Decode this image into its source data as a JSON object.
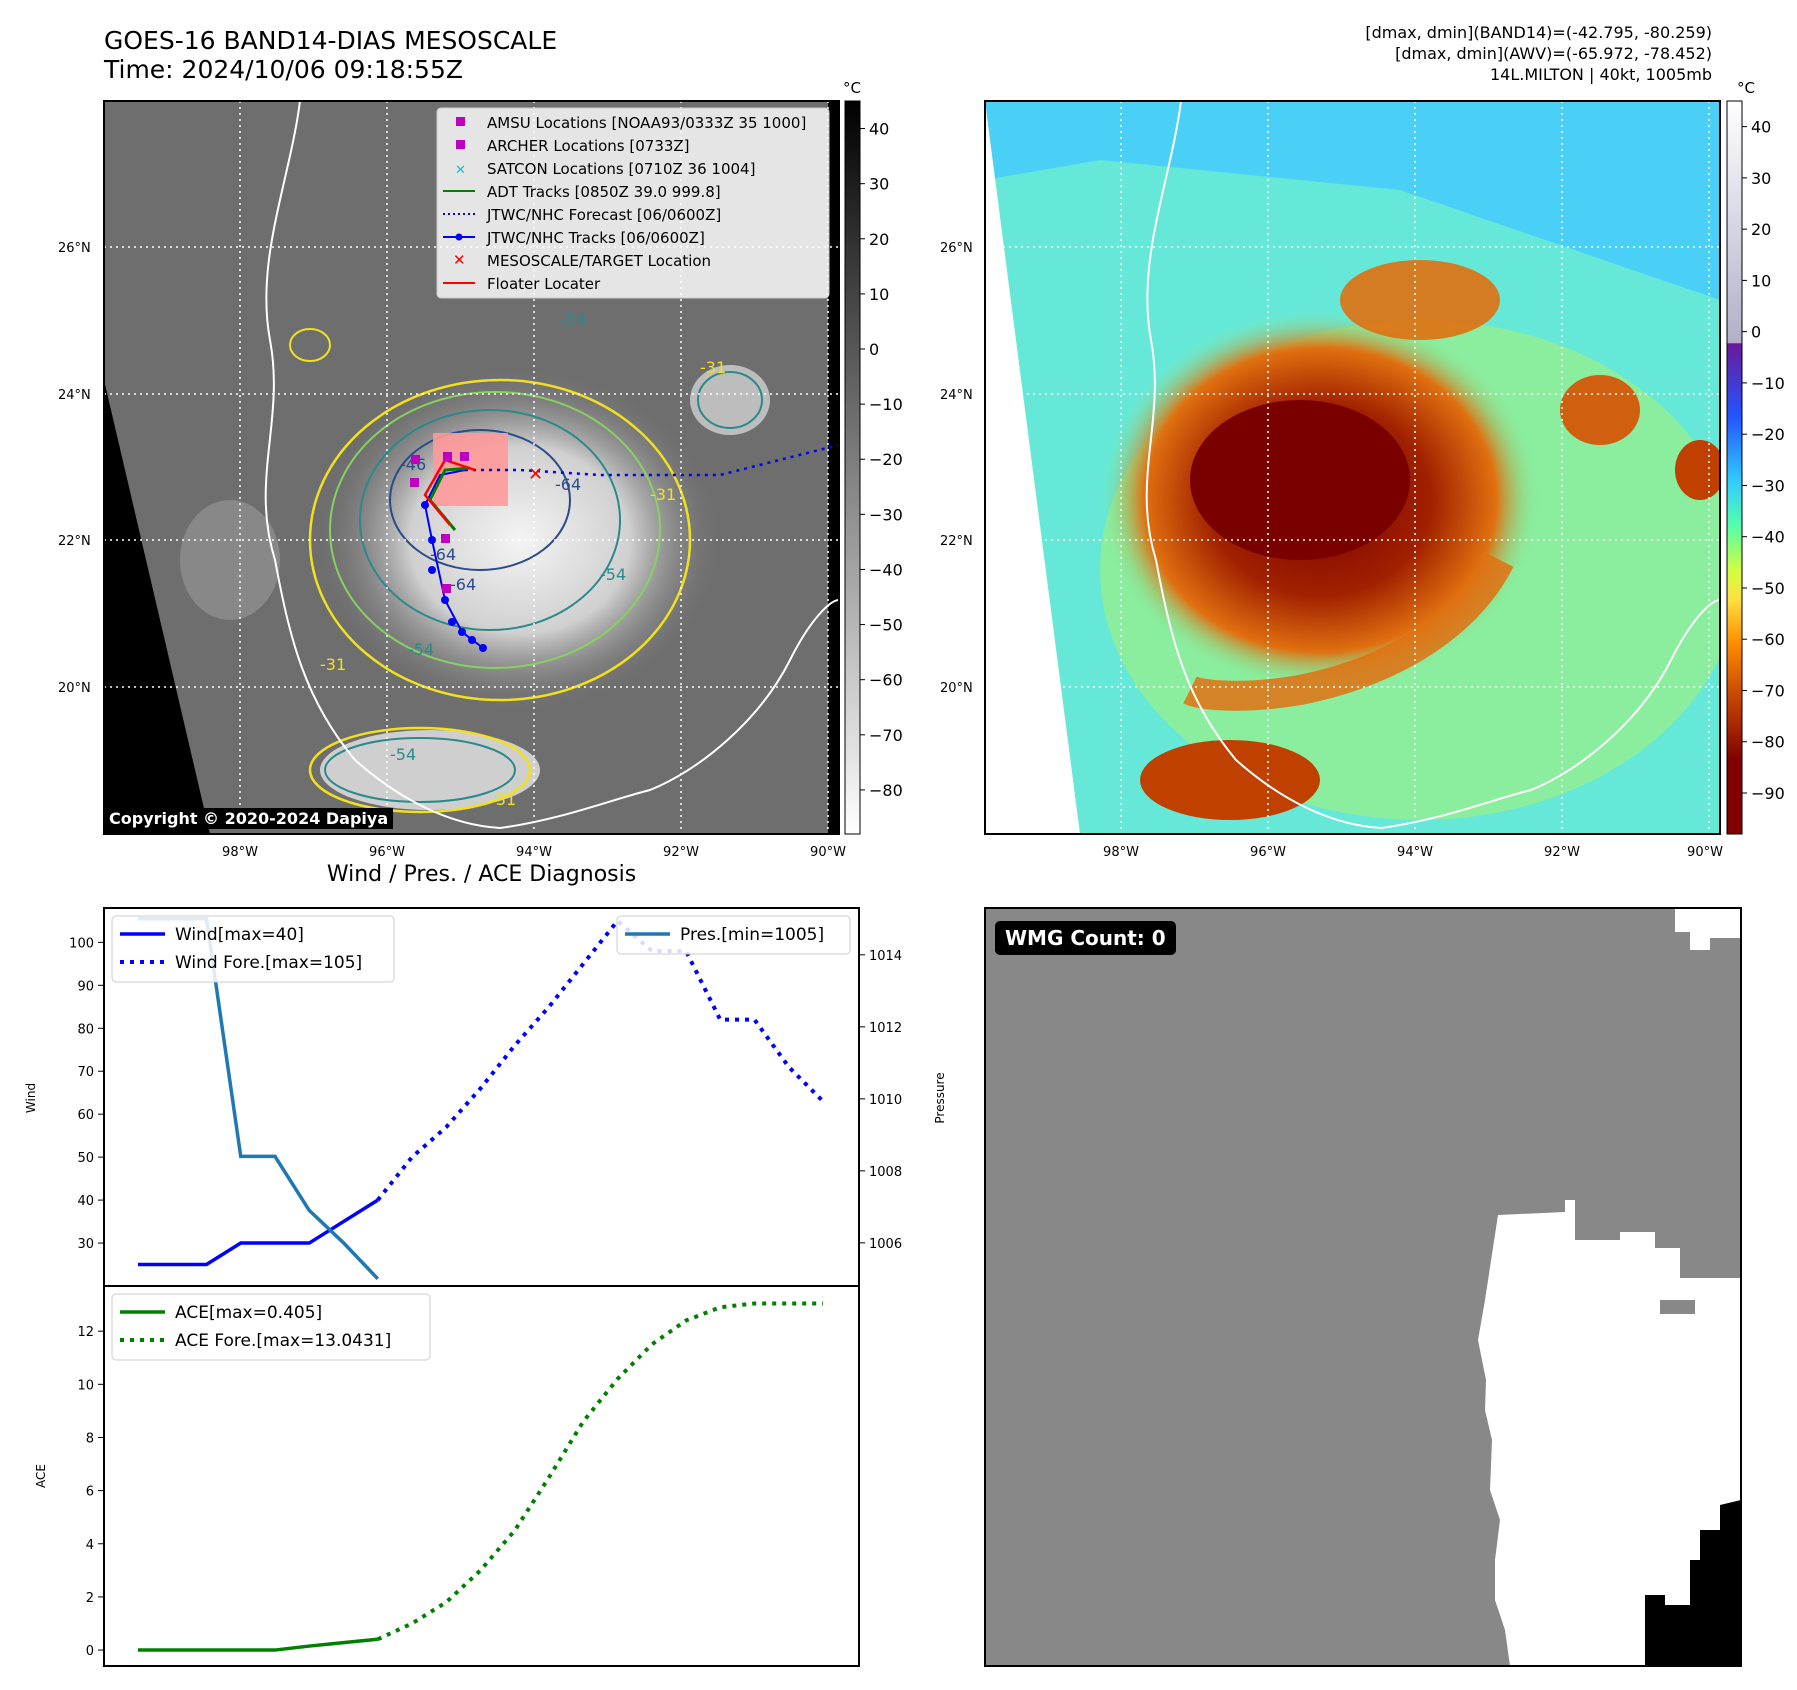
{
  "header": {
    "title_line1": "GOES-16 BAND14-DIAS MESOSCALE",
    "title_line2": "Time: 2024/10/06 09:18:55Z",
    "info_line1": "[dmax, dmin](BAND14)=(-42.795, -80.259)",
    "info_line2": "[dmax, dmin](AWV)=(-65.972, -78.452)",
    "info_line3": "14L.MILTON | 40kt, 1005mb"
  },
  "map": {
    "lat_labels": [
      "26°N",
      "24°N",
      "22°N",
      "20°N"
    ],
    "lon_labels": [
      "98°W",
      "96°W",
      "94°W",
      "92°W",
      "90°W"
    ],
    "contour_labels": [
      "-54",
      "-64",
      "-31",
      "-54",
      "-31",
      "-64",
      "-54",
      "-31",
      "-54",
      "-31",
      "-64",
      "-46"
    ],
    "legend": [
      {
        "label": "AMSU Locations [NOAA93/0333Z 35 1000]",
        "marker": "square",
        "color": "#c000c0"
      },
      {
        "label": "ARCHER Locations [0733Z]",
        "marker": "square",
        "color": "#c000c0"
      },
      {
        "label": "SATCON Locations [0710Z 36 1004]",
        "marker": "x",
        "color": "#17becf"
      },
      {
        "label": "ADT Tracks [0850Z 39.0 999.8]",
        "marker": "line",
        "color": "#008000"
      },
      {
        "label": "JTWC/NHC Forecast [06/0600Z]",
        "marker": "dotted",
        "color": "#0000ff"
      },
      {
        "label": "JTWC/NHC Tracks [06/0600Z]",
        "marker": "line-dot",
        "color": "#0000ff"
      },
      {
        "label": "MESOSCALE/TARGET Location",
        "marker": "x",
        "color": "#ff0000"
      },
      {
        "label": "Floater Locater",
        "marker": "line",
        "color": "#ff0000"
      }
    ],
    "copyright": "Copyright © 2020-2024 Dapiya",
    "colors": {
      "background": "#6e6e6e",
      "coast": "#ffffff",
      "grid": "#ffffff"
    }
  },
  "colorbar_gray": {
    "unit": "°C",
    "ticks": [
      "40",
      "30",
      "20",
      "10",
      "0",
      "−10",
      "−20",
      "−30",
      "−40",
      "−50",
      "−60",
      "−70",
      "−80"
    ]
  },
  "colorbar_color": {
    "unit": "°C",
    "ticks": [
      "40",
      "30",
      "20",
      "10",
      "0",
      "−10",
      "−20",
      "−30",
      "−40",
      "−50",
      "−60",
      "−70",
      "−80",
      "−90"
    ]
  },
  "wmg": {
    "badge": "WMG Count: 0",
    "colors": {
      "gray": "#888888",
      "white": "#ffffff",
      "black": "#000000"
    }
  },
  "chart_data": [
    {
      "type": "line",
      "title": "Wind / Pres. / ACE Diagnosis",
      "ylabel": "Wind",
      "ylabel_right": "Pressure",
      "ylim": [
        20,
        108
      ],
      "ylim_right": [
        1004.8,
        1015.3
      ],
      "y_ticks": [
        "100",
        "90",
        "80",
        "70",
        "60",
        "50",
        "40",
        "30"
      ],
      "y_ticks_right": [
        "1014",
        "1012",
        "1010",
        "1008",
        "1006"
      ],
      "x": [
        0,
        1,
        2,
        3,
        4,
        5,
        6,
        7,
        8,
        9,
        10,
        11,
        12,
        13,
        14,
        15,
        16,
        17,
        18,
        19,
        20
      ],
      "series": [
        {
          "name": "Wind[max=40]",
          "axis": "left",
          "style": "solid",
          "color": "#0000ff",
          "x": [
            0,
            1,
            2,
            3,
            4,
            5,
            6,
            7
          ],
          "values": [
            25,
            25,
            25,
            30,
            30,
            30,
            35,
            40
          ]
        },
        {
          "name": "Wind Fore.[max=105]",
          "axis": "left",
          "style": "dotted",
          "color": "#0000ff",
          "x": [
            7,
            8,
            9,
            10,
            11,
            12,
            13,
            14,
            15,
            16,
            17,
            18,
            19,
            20
          ],
          "values": [
            40,
            50,
            57,
            66,
            76,
            85,
            95,
            105,
            98,
            98,
            82,
            82,
            71,
            63
          ]
        },
        {
          "name": "Pres.[min=1005]",
          "axis": "right",
          "style": "solid",
          "color": "#1f77b4",
          "x": [
            0,
            1,
            2,
            3,
            4,
            5,
            6,
            7
          ],
          "values": [
            1015,
            1015,
            1015,
            1008.4,
            1008.4,
            1006.9,
            1006.0,
            1005.0
          ]
        }
      ]
    },
    {
      "type": "line",
      "ylabel": "ACE",
      "ylim": [
        -0.6,
        13.7
      ],
      "y_ticks": [
        "12",
        "10",
        "8",
        "6",
        "4",
        "2",
        "0"
      ],
      "series": [
        {
          "name": "ACE[max=0.405]",
          "style": "solid",
          "color": "#008000",
          "x": [
            0,
            1,
            2,
            3,
            4,
            5,
            6,
            7
          ],
          "values": [
            0,
            0,
            0,
            0,
            0,
            0.15,
            0.28,
            0.405
          ]
        },
        {
          "name": "ACE Fore.[max=13.0431]",
          "style": "dotted",
          "color": "#008000",
          "x": [
            7,
            8,
            9,
            10,
            11,
            12,
            13,
            14,
            15,
            16,
            17,
            18,
            19,
            20
          ],
          "values": [
            0.405,
            1.0,
            1.8,
            3.0,
            4.5,
            6.5,
            8.6,
            10.2,
            11.5,
            12.4,
            12.9,
            13.0431,
            13.0431,
            13.0431
          ]
        }
      ]
    }
  ]
}
